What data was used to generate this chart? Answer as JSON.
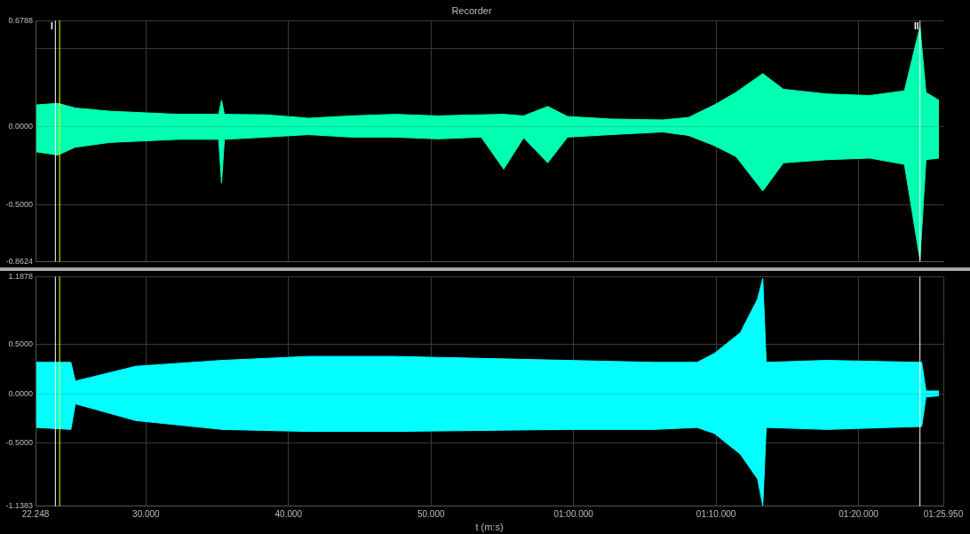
{
  "chart_data": [
    {
      "type": "area",
      "title": "Recorder",
      "x": [
        22.31,
        23.82,
        25.04,
        27.46,
        32.31,
        35.1,
        35.3,
        35.5,
        38.37,
        41.4,
        44.43,
        47.46,
        50.49,
        53.52,
        55.1,
        56.5,
        58.19,
        59.58,
        62.61,
        66.25,
        68.07,
        69.88,
        71.4,
        73.28,
        74.73,
        77.76,
        80.79,
        83.22,
        84.31,
        84.73,
        85.64
      ],
      "series": [
        {
          "color": "#00ffb0",
          "values": [
            0.14,
            0.15,
            0.12,
            0.1,
            0.08,
            0.08,
            0.17,
            0.08,
            0.077,
            0.055,
            0.07,
            0.08,
            0.07,
            0.077,
            0.08,
            0.07,
            0.13,
            0.066,
            0.05,
            0.044,
            0.06,
            0.14,
            0.22,
            0.34,
            0.24,
            0.21,
            0.2,
            0.23,
            0.64,
            0.22,
            0.17
          ]
        },
        {
          "color": "#00ffb0",
          "values": [
            -0.16,
            -0.18,
            -0.13,
            -0.1,
            -0.08,
            -0.08,
            -0.36,
            -0.08,
            -0.066,
            -0.05,
            -0.066,
            -0.066,
            -0.077,
            -0.066,
            -0.27,
            -0.07,
            -0.23,
            -0.066,
            -0.05,
            -0.033,
            -0.055,
            -0.12,
            -0.19,
            -0.41,
            -0.23,
            -0.21,
            -0.2,
            -0.24,
            -0.85,
            -0.21,
            -0.2
          ]
        }
      ],
      "xlim": [
        22.248,
        85.95
      ],
      "xticks": [
        30,
        40,
        50,
        60,
        70,
        80
      ],
      "ylim": [
        -0.8624,
        0.6788
      ],
      "yticks": [
        {
          "value": -0.8624,
          "label": "-0.8624"
        },
        {
          "value": -0.5,
          "label": "-0.5000"
        },
        {
          "value": 0,
          "label": "0.0000"
        },
        {
          "value": 0.5,
          "label": null
        },
        {
          "value": 0.6788,
          "label": "0.6788"
        }
      ],
      "tick_labels": "y",
      "grid": true,
      "legend": false,
      "ref_lines": [
        {
          "axis": "x",
          "value": 23.64,
          "label": "I",
          "color": "#ffffff"
        },
        {
          "axis": "x",
          "value": 23.94,
          "label": null,
          "color": "#ffff00"
        },
        {
          "axis": "x",
          "value": 84.31,
          "label": "II",
          "color": "#ffffff"
        }
      ]
    },
    {
      "type": "area",
      "xlabel": "t (m:s)",
      "x": [
        22.31,
        24.73,
        25.04,
        29.28,
        35.34,
        41.4,
        47.46,
        53.52,
        59.58,
        65.64,
        68.67,
        69.88,
        71.7,
        72.91,
        73.28,
        73.52,
        77.76,
        84.43,
        84.73,
        85.64
      ],
      "series": [
        {
          "color": "#00ffff",
          "values": [
            0.32,
            0.32,
            0.13,
            0.28,
            0.34,
            0.38,
            0.38,
            0.36,
            0.34,
            0.32,
            0.32,
            0.41,
            0.62,
            0.96,
            1.17,
            0.32,
            0.34,
            0.32,
            0.03,
            0.03
          ]
        },
        {
          "color": "#00ffff",
          "values": [
            -0.34,
            -0.36,
            -0.1,
            -0.27,
            -0.36,
            -0.38,
            -0.38,
            -0.37,
            -0.36,
            -0.36,
            -0.34,
            -0.4,
            -0.61,
            -0.86,
            -1.13,
            -0.34,
            -0.36,
            -0.33,
            -0.03,
            -0.02
          ]
        }
      ],
      "xlim": [
        22.248,
        85.95
      ],
      "xticks": [
        {
          "value": 22.248,
          "label": "22.248"
        },
        {
          "value": 30,
          "label": "30.000"
        },
        {
          "value": 40,
          "label": "40.000"
        },
        {
          "value": 50,
          "label": "50.000"
        },
        {
          "value": 60,
          "label": "01:00.000"
        },
        {
          "value": 70,
          "label": "01:10.000"
        },
        {
          "value": 80,
          "label": "01:20.000"
        },
        {
          "value": 85.95,
          "label": "01:25.950"
        }
      ],
      "ylim": [
        -1.1383,
        1.1878
      ],
      "yticks": [
        {
          "value": -1.1383,
          "label": "-1.1383"
        },
        {
          "value": -0.5,
          "label": "-0.5000"
        },
        {
          "value": 0,
          "label": "0.0000"
        },
        {
          "value": 0.5,
          "label": "0.5000"
        },
        {
          "value": 1.1878,
          "label": "1.1878"
        }
      ],
      "grid": true,
      "legend": false,
      "ref_lines": [
        {
          "axis": "x",
          "value": 23.64,
          "label": null,
          "color": "#ffffff"
        },
        {
          "axis": "x",
          "value": 23.94,
          "label": null,
          "color": "#ffff00"
        },
        {
          "axis": "x",
          "value": 84.31,
          "label": null,
          "color": "#ffffff"
        }
      ]
    }
  ]
}
